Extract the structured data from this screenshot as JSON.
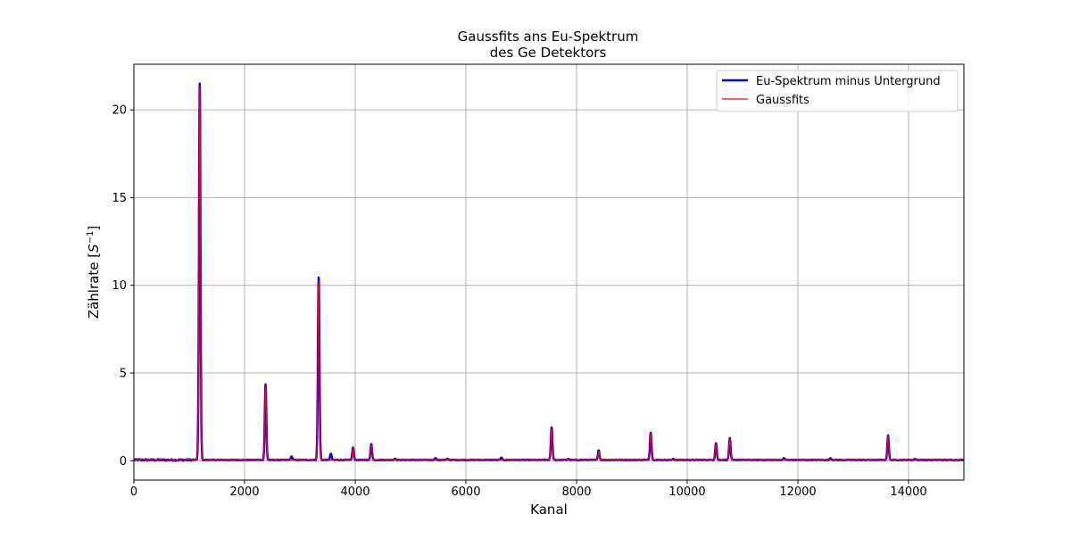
{
  "chart_data": {
    "type": "line",
    "title": [
      "Gaussfits ans Eu-Spektrum",
      "des Ge Detektors"
    ],
    "xlabel": "Kanal",
    "ylabel_main": "Zählrate [",
    "ylabel_unit": "S",
    "ylabel_exp": "−1",
    "ylabel_close": "]",
    "xlim": [
      0,
      15000
    ],
    "ylim": [
      -1.1,
      22.6
    ],
    "xticks": [
      0,
      2000,
      4000,
      6000,
      8000,
      10000,
      12000,
      14000
    ],
    "yticks": [
      0,
      5,
      10,
      15,
      20
    ],
    "grid": true,
    "legend_position": "top-right",
    "baseline": 0.05,
    "series": [
      {
        "name": "Eu-Spektrum minus Untergrund",
        "color": "#0000ff",
        "peaks": [
          {
            "x": 1190,
            "y": 21.5
          },
          {
            "x": 2380,
            "y": 4.35
          },
          {
            "x": 2850,
            "y": 0.25
          },
          {
            "x": 3340,
            "y": 10.45
          },
          {
            "x": 3560,
            "y": 0.4
          },
          {
            "x": 3960,
            "y": 0.75
          },
          {
            "x": 4290,
            "y": 0.95
          },
          {
            "x": 4720,
            "y": 0.12
          },
          {
            "x": 5450,
            "y": 0.15
          },
          {
            "x": 5670,
            "y": 0.12
          },
          {
            "x": 6640,
            "y": 0.18
          },
          {
            "x": 7550,
            "y": 1.9
          },
          {
            "x": 7850,
            "y": 0.1
          },
          {
            "x": 8400,
            "y": 0.6
          },
          {
            "x": 9340,
            "y": 1.6
          },
          {
            "x": 9750,
            "y": 0.1
          },
          {
            "x": 10520,
            "y": 1.0
          },
          {
            "x": 10770,
            "y": 1.3
          },
          {
            "x": 11750,
            "y": 0.15
          },
          {
            "x": 12590,
            "y": 0.15
          },
          {
            "x": 13630,
            "y": 1.45
          },
          {
            "x": 14120,
            "y": 0.1
          }
        ]
      },
      {
        "name": "Gaussfits",
        "color": "#ff0000",
        "peaks": [
          {
            "x": 1190,
            "y": 21.3
          },
          {
            "x": 2380,
            "y": 4.25
          },
          {
            "x": 3340,
            "y": 10.2
          },
          {
            "x": 3960,
            "y": 0.7
          },
          {
            "x": 4290,
            "y": 0.9
          },
          {
            "x": 7550,
            "y": 1.8
          },
          {
            "x": 8400,
            "y": 0.55
          },
          {
            "x": 9340,
            "y": 1.55
          },
          {
            "x": 10520,
            "y": 0.95
          },
          {
            "x": 10770,
            "y": 1.25
          },
          {
            "x": 13630,
            "y": 1.4
          }
        ]
      }
    ]
  }
}
